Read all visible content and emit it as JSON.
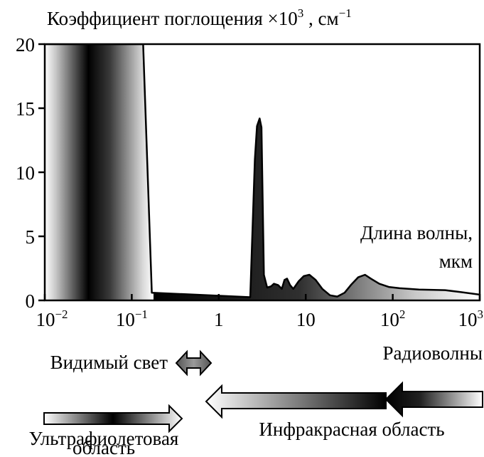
{
  "chart_data": {
    "type": "area",
    "title": "Коэффициент поглощения ×10",
    "title_sup": "3",
    "title_unit": " , см",
    "title_unit_sup": "−1",
    "xscale": "log",
    "xlim": [
      0.01,
      1000
    ],
    "ylim": [
      0,
      20
    ],
    "xlabel_line1": "Длина волны,",
    "xlabel_line2": "мкм",
    "x_ticks": [
      {
        "value": 0.01,
        "base": "10",
        "exp": "−2"
      },
      {
        "value": 0.1,
        "base": "10",
        "exp": "−1"
      },
      {
        "value": 1,
        "base": "1",
        "exp": ""
      },
      {
        "value": 10,
        "base": "10",
        "exp": ""
      },
      {
        "value": 100,
        "base": "10",
        "exp": "2"
      },
      {
        "value": 1000,
        "base": "10",
        "exp": "3"
      }
    ],
    "y_ticks": [
      {
        "value": 0,
        "label": "0"
      },
      {
        "value": 5,
        "label": "5"
      },
      {
        "value": 10,
        "label": "10"
      },
      {
        "value": 15,
        "label": "15"
      },
      {
        "value": 20,
        "label": "20"
      }
    ],
    "series": [
      {
        "points": [
          [
            0.01,
            20
          ],
          [
            0.135,
            20
          ],
          [
            0.17,
            0.6
          ],
          [
            2.3,
            0.25
          ],
          [
            2.6,
            11
          ],
          [
            2.75,
            13.6
          ],
          [
            2.95,
            14.2
          ],
          [
            3.1,
            13.5
          ],
          [
            3.3,
            2
          ],
          [
            3.6,
            1
          ],
          [
            4.0,
            1.1
          ],
          [
            4.3,
            1.3
          ],
          [
            4.8,
            1.2
          ],
          [
            5.3,
            0.9
          ],
          [
            5.7,
            1.6
          ],
          [
            6.1,
            1.7
          ],
          [
            6.6,
            1.2
          ],
          [
            7.2,
            0.9
          ],
          [
            8.3,
            1.5
          ],
          [
            9.5,
            1.9
          ],
          [
            11,
            2.0
          ],
          [
            13,
            1.6
          ],
          [
            15.5,
            0.9
          ],
          [
            19,
            0.4
          ],
          [
            23,
            0.3
          ],
          [
            28,
            0.6
          ],
          [
            33,
            1.2
          ],
          [
            40,
            1.8
          ],
          [
            48,
            2.0
          ],
          [
            56,
            1.7
          ],
          [
            70,
            1.3
          ],
          [
            90,
            1.05
          ],
          [
            120,
            0.95
          ],
          [
            200,
            0.85
          ],
          [
            400,
            0.8
          ],
          [
            600,
            0.65
          ],
          [
            1000,
            0.45
          ]
        ]
      }
    ]
  },
  "regions": {
    "visible": "Видимый свет",
    "radio": "Радиоволны",
    "uv_line1": "Ультрафиолетовая",
    "uv_line2": "область",
    "infrared": "Инфракрасная область"
  }
}
